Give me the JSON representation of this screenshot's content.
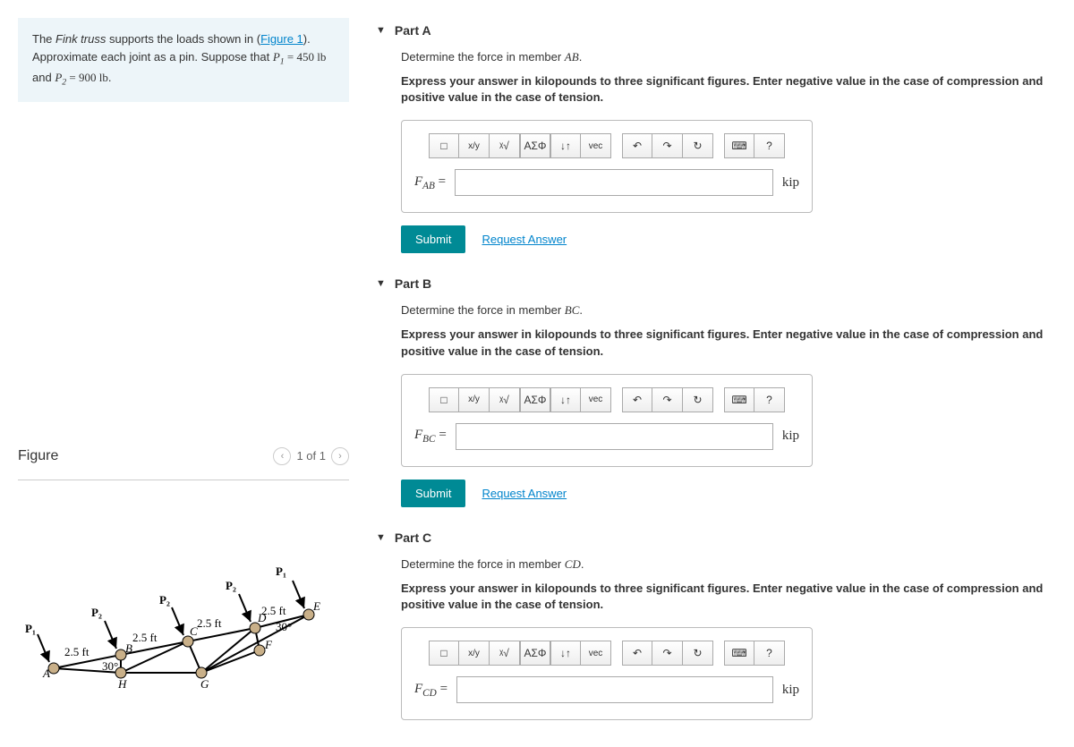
{
  "problem": {
    "sentence1_pre": "The ",
    "sentence1_italic": "Fink truss",
    "sentence1_mid": " supports the loads shown in (",
    "figure_link": "Figure 1",
    "sentence1_post": "). Approximate each joint as a pin. Suppose that ",
    "p1_var": "P",
    "p1_sub": "1",
    "p1_val": " = 450 lb",
    "and": " and ",
    "p2_var": "P",
    "p2_sub": "2",
    "p2_val": " = 900 lb",
    "end": "."
  },
  "figure": {
    "title": "Figure",
    "page_indicator": "1 of 1",
    "labels": {
      "P1": "P₁",
      "P2a": "P₂",
      "P2b": "P₂",
      "P2c": "P₂",
      "d1": "2.5 ft",
      "d2": "2.5 ft",
      "d3": "2.5 ft",
      "d4": "2.5 ft",
      "ang30a": "30°",
      "ang30b": "30°",
      "A": "A",
      "B": "B",
      "C": "C",
      "D": "D",
      "E": "E",
      "F": "F",
      "G": "G",
      "H": "H"
    }
  },
  "parts": [
    {
      "label": "Part A",
      "prompt_pre": "Determine the force in member ",
      "prompt_mem": "AB",
      "prompt_post": ".",
      "instruction": "Express your answer in kilopounds to three significant figures. Enter negative value in the case of compression and positive value in the case of tension.",
      "var_base": "F",
      "var_sub": "AB",
      "eq": " =",
      "unit": "kip",
      "submit": "Submit",
      "request": "Request Answer"
    },
    {
      "label": "Part B",
      "prompt_pre": "Determine the force in member ",
      "prompt_mem": "BC",
      "prompt_post": ".",
      "instruction": "Express your answer in kilopounds to three significant figures. Enter negative value in the case of compression and positive value in the case of tension.",
      "var_base": "F",
      "var_sub": "BC",
      "eq": " =",
      "unit": "kip",
      "submit": "Submit",
      "request": "Request Answer"
    },
    {
      "label": "Part C",
      "prompt_pre": "Determine the force in member ",
      "prompt_mem": "CD",
      "prompt_post": ".",
      "instruction": "Express your answer in kilopounds to three significant figures. Enter negative value in the case of compression and positive value in the case of tension.",
      "var_base": "F",
      "var_sub": "CD",
      "eq": " =",
      "unit": "kip",
      "submit": "Submit",
      "request": "Request Answer"
    }
  ],
  "tools": {
    "templates": "□",
    "fraction": "x/y",
    "radical": "ᵡ√",
    "greek": "ΑΣΦ",
    "updown": "↓↑",
    "vec": "vec",
    "undo": "↶",
    "redo": "↷",
    "reset": "↻",
    "keyboard": "⌨",
    "help": "?"
  }
}
